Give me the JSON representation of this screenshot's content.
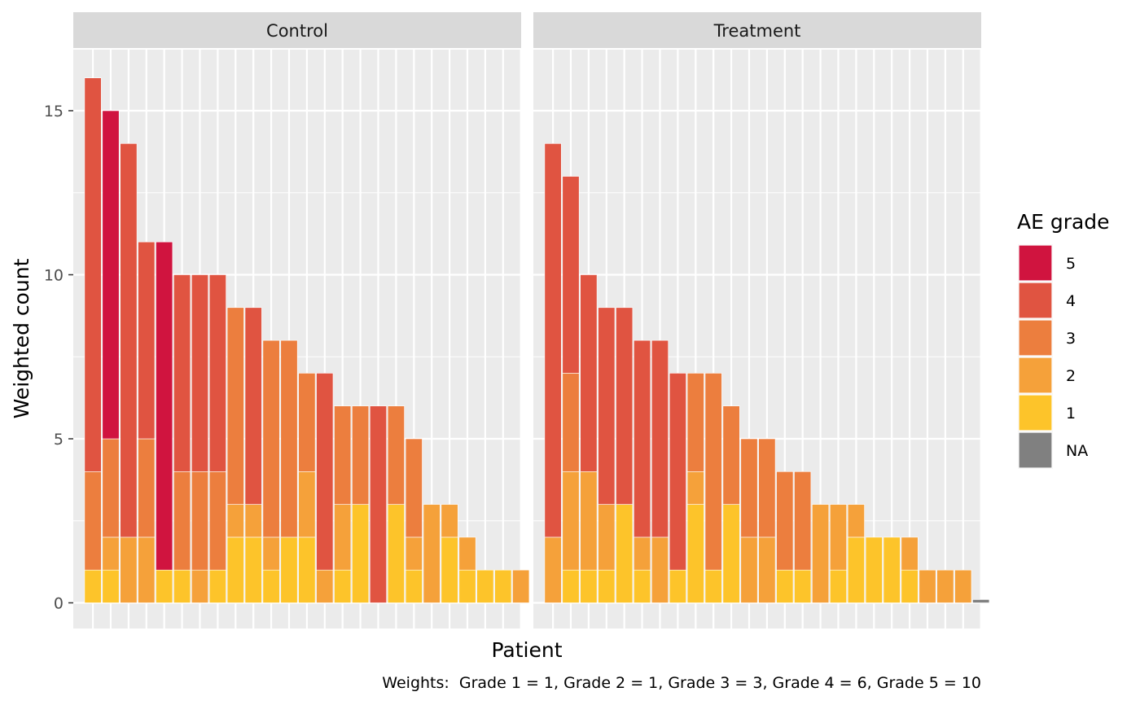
{
  "chart_data": {
    "type": "bar",
    "stacked": true,
    "faceted": true,
    "xlabel": "Patient",
    "ylabel": "Weighted count",
    "ylim": [
      0,
      16.8
    ],
    "y_ticks": [
      0,
      5,
      10,
      15
    ],
    "grid": true,
    "caption": "Weights:  Grade 1 = 1, Grade 2 = 1, Grade 3 = 3, Grade 4 = 6, Grade 5 = 10",
    "legend": {
      "title": "AE grade",
      "position": "right",
      "items": [
        {
          "label": "5",
          "color": "#d0143f"
        },
        {
          "label": "4",
          "color": "#e05441"
        },
        {
          "label": "3",
          "color": "#ec7e3e"
        },
        {
          "label": "2",
          "color": "#f5a13a"
        },
        {
          "label": "1",
          "color": "#fdc42a"
        },
        {
          "label": "NA",
          "color": "#808080"
        }
      ]
    },
    "grade_order": [
      "1",
      "2",
      "3",
      "4",
      "5",
      "NA"
    ],
    "panels": [
      {
        "name": "Control",
        "n_slots": 25,
        "bars": [
          {
            "1": 1,
            "2": 0,
            "3": 3,
            "4": 12,
            "5": 0
          },
          {
            "1": 1,
            "2": 1,
            "3": 3,
            "4": 0,
            "5": 10
          },
          {
            "1": 0,
            "2": 2,
            "3": 0,
            "4": 12,
            "5": 0
          },
          {
            "1": 0,
            "2": 2,
            "3": 3,
            "4": 6,
            "5": 0
          },
          {
            "1": 1,
            "2": 0,
            "3": 0,
            "4": 0,
            "5": 10
          },
          {
            "1": 1,
            "2": 0,
            "3": 3,
            "4": 6,
            "5": 0
          },
          {
            "1": 0,
            "2": 1,
            "3": 3,
            "4": 6,
            "5": 0
          },
          {
            "1": 1,
            "2": 0,
            "3": 3,
            "4": 6,
            "5": 0
          },
          {
            "1": 2,
            "2": 1,
            "3": 6,
            "4": 0,
            "5": 0
          },
          {
            "1": 2,
            "2": 1,
            "3": 0,
            "4": 6,
            "5": 0
          },
          {
            "1": 1,
            "2": 1,
            "3": 6,
            "4": 0,
            "5": 0
          },
          {
            "1": 2,
            "2": 0,
            "3": 6,
            "4": 0,
            "5": 0
          },
          {
            "1": 2,
            "2": 2,
            "3": 3,
            "4": 0,
            "5": 0
          },
          {
            "1": 0,
            "2": 1,
            "3": 0,
            "4": 6,
            "5": 0
          },
          {
            "1": 1,
            "2": 2,
            "3": 3,
            "4": 0,
            "5": 0
          },
          {
            "1": 3,
            "2": 0,
            "3": 3,
            "4": 0,
            "5": 0
          },
          {
            "1": 0,
            "2": 0,
            "3": 0,
            "4": 6,
            "5": 0
          },
          {
            "1": 3,
            "2": 0,
            "3": 3,
            "4": 0,
            "5": 0
          },
          {
            "1": 1,
            "2": 1,
            "3": 3,
            "4": 0,
            "5": 0
          },
          {
            "1": 0,
            "2": 3,
            "3": 0,
            "4": 0,
            "5": 0
          },
          {
            "1": 2,
            "2": 1,
            "3": 0,
            "4": 0,
            "5": 0
          },
          {
            "1": 1,
            "2": 1,
            "3": 0,
            "4": 0,
            "5": 0
          },
          {
            "1": 1,
            "2": 0,
            "3": 0,
            "4": 0,
            "5": 0
          },
          {
            "1": 1,
            "2": 0,
            "3": 0,
            "4": 0,
            "5": 0
          },
          {
            "1": 0,
            "2": 1,
            "3": 0,
            "4": 0,
            "5": 0
          }
        ]
      },
      {
        "name": "Treatment",
        "n_slots": 25,
        "bars": [
          {
            "1": 0,
            "2": 2,
            "3": 0,
            "4": 12,
            "5": 0
          },
          {
            "1": 1,
            "2": 3,
            "3": 3,
            "4": 6,
            "5": 0
          },
          {
            "1": 1,
            "2": 3,
            "3": 0,
            "4": 6,
            "5": 0
          },
          {
            "1": 1,
            "2": 2,
            "3": 0,
            "4": 6,
            "5": 0
          },
          {
            "1": 3,
            "2": 0,
            "3": 0,
            "4": 6,
            "5": 0
          },
          {
            "1": 1,
            "2": 1,
            "3": 0,
            "4": 6,
            "5": 0
          },
          {
            "1": 0,
            "2": 2,
            "3": 0,
            "4": 6,
            "5": 0
          },
          {
            "1": 1,
            "2": 0,
            "3": 0,
            "4": 6,
            "5": 0
          },
          {
            "1": 3,
            "2": 1,
            "3": 3,
            "4": 0,
            "5": 0
          },
          {
            "1": 1,
            "2": 0,
            "3": 6,
            "4": 0,
            "5": 0
          },
          {
            "1": 3,
            "2": 0,
            "3": 3,
            "4": 0,
            "5": 0
          },
          {
            "1": 0,
            "2": 2,
            "3": 3,
            "4": 0,
            "5": 0
          },
          {
            "1": 0,
            "2": 2,
            "3": 3,
            "4": 0,
            "5": 0
          },
          {
            "1": 1,
            "2": 0,
            "3": 3,
            "4": 0,
            "5": 0
          },
          {
            "1": 1,
            "2": 0,
            "3": 3,
            "4": 0,
            "5": 0
          },
          {
            "1": 0,
            "2": 3,
            "3": 0,
            "4": 0,
            "5": 0
          },
          {
            "1": 1,
            "2": 2,
            "3": 0,
            "4": 0,
            "5": 0
          },
          {
            "1": 2,
            "2": 1,
            "3": 0,
            "4": 0,
            "5": 0
          },
          {
            "1": 2,
            "2": 0,
            "3": 0,
            "4": 0,
            "5": 0
          },
          {
            "1": 2,
            "2": 0,
            "3": 0,
            "4": 0,
            "5": 0
          },
          {
            "1": 1,
            "2": 1,
            "3": 0,
            "4": 0,
            "5": 0
          },
          {
            "1": 0,
            "2": 1,
            "3": 0,
            "4": 0,
            "5": 0
          },
          {
            "1": 0,
            "2": 1,
            "3": 0,
            "4": 0,
            "5": 0
          },
          {
            "1": 0,
            "2": 1,
            "3": 0,
            "4": 0,
            "5": 0
          },
          {
            "NA": 0.1
          }
        ]
      }
    ]
  }
}
